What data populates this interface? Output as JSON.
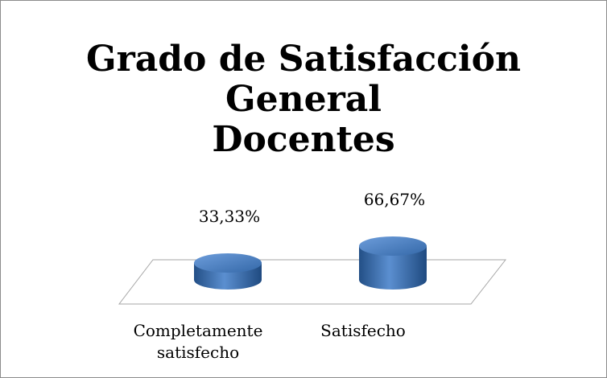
{
  "chart_data": {
    "type": "cylinder",
    "title": [
      "Grado de Satisfacción",
      "General",
      "Docentes"
    ],
    "categories": [
      "Completamente satisfecho",
      "Satisfecho"
    ],
    "values": [
      33.33,
      66.67
    ],
    "value_labels": [
      "33,33%",
      "66,67%"
    ],
    "color": "#3a6fb0"
  }
}
